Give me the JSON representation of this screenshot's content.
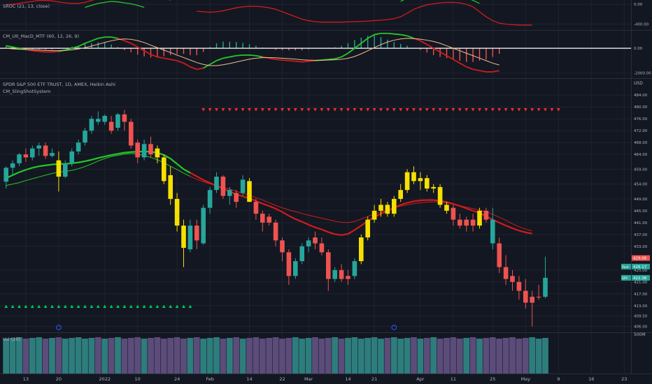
{
  "colors": {
    "background": "#131722",
    "grid": "#1f2330",
    "separator": "#2a2e39",
    "axis_text": "#b2b5be",
    "bull": "#26a69a",
    "bear": "#ef5350",
    "yellow": "#f5e000",
    "green_line": "#26c826",
    "red_line": "#d01c1c",
    "orange_line": "#f0c090",
    "white": "#ffffff",
    "vol_teal": "#2e7d7d",
    "vol_purple": "#5b4c7a",
    "tri_down": "#ff2d2d",
    "tri_up": "#00c853",
    "price_badge_red": "#ef5350",
    "price_badge_teal": "#26a69a"
  },
  "panes": {
    "sroc": {
      "title": "SROC (21, 13, close)",
      "ticks": [
        "0.00",
        "-400.00"
      ],
      "tick_values": [
        0,
        -400
      ],
      "range": [
        -520,
        60
      ]
    },
    "macd": {
      "title": "CM_Ult_MacD_MTF (60, 12, 26, 9)",
      "ticks": [
        "0.00",
        "-2000.00"
      ],
      "tick_values": [
        0,
        -2000
      ],
      "range": [
        -2300,
        1300
      ]
    },
    "price": {
      "title": "SPDR S&P 500 ETF TRUST, 1D, AMEX, Heikin Ashi",
      "subtitle": "CM_SlingShotSystem",
      "currency": "USD",
      "ticks": [
        "484.00",
        "480.00",
        "476.00",
        "472.00",
        "468.00",
        "464.00",
        "459.00",
        "454.00",
        "449.00",
        "445.00",
        "441.00",
        "437.00",
        "433.00",
        "425.00",
        "421.00",
        "417.00",
        "413.00",
        "409.50",
        "406.00"
      ],
      "tick_values": [
        484,
        480,
        476,
        472,
        468,
        464,
        459,
        454,
        449,
        445,
        441,
        437,
        433,
        425,
        421,
        417,
        413,
        409.5,
        406
      ],
      "range": [
        404,
        489
      ],
      "badges": [
        {
          "label": "",
          "value": "429.06",
          "price": 429.06,
          "color": "#ef5350"
        },
        {
          "label": "Post",
          "value": "426.17",
          "price": 426.17,
          "color": "#26a69a"
        },
        {
          "label": "SPY",
          "value": "422.38",
          "price": 422.38,
          "color": "#26a69a"
        }
      ]
    },
    "volume": {
      "title": "Vol (20)",
      "ticks": [
        "500M"
      ]
    }
  },
  "x_axis": {
    "labels": [
      "13",
      "20",
      "2022",
      "10",
      "24",
      "Feb",
      "14",
      "22",
      "Mar",
      "14",
      "21",
      "Apr",
      "11",
      "25",
      "May",
      "9",
      "16",
      "23"
    ],
    "label_bars": [
      3,
      8,
      15,
      20,
      26,
      31,
      37,
      42,
      46,
      52,
      56,
      63,
      68,
      74,
      79,
      84,
      89,
      94
    ]
  },
  "chart_data": {
    "type": "candlestick",
    "candle_style": "Heikin Ashi",
    "ohlc_color": [
      [
        454.8,
        460.0,
        452.5,
        459.5,
        "g"
      ],
      [
        459.5,
        462.0,
        457.0,
        461.0,
        "g"
      ],
      [
        461.0,
        464.5,
        460.0,
        464.0,
        "g"
      ],
      [
        464.0,
        466.0,
        461.5,
        463.0,
        "r"
      ],
      [
        463.0,
        467.0,
        462.0,
        466.0,
        "g"
      ],
      [
        466.0,
        468.0,
        463.5,
        467.0,
        "g"
      ],
      [
        467.0,
        468.0,
        462.5,
        463.5,
        "r"
      ],
      [
        463.5,
        466.0,
        463.0,
        464.5,
        "g"
      ],
      [
        462.0,
        465.0,
        451.5,
        456.5,
        "y"
      ],
      [
        456.5,
        462.0,
        456.0,
        461.0,
        "g"
      ],
      [
        461.0,
        466.0,
        460.0,
        465.0,
        "g"
      ],
      [
        465.0,
        469.0,
        464.0,
        468.0,
        "g"
      ],
      [
        468.0,
        473.0,
        467.0,
        472.0,
        "g"
      ],
      [
        472.0,
        477.0,
        471.0,
        476.0,
        "g"
      ],
      [
        476.0,
        478.5,
        474.0,
        475.0,
        "g"
      ],
      [
        475.0,
        477.5,
        474.0,
        477.0,
        "g"
      ],
      [
        475.0,
        477.0,
        471.0,
        472.0,
        "r"
      ],
      [
        473.0,
        478.0,
        472.0,
        477.5,
        "g"
      ],
      [
        477.5,
        479.0,
        472.0,
        475.0,
        "r"
      ],
      [
        475.0,
        476.0,
        466.0,
        467.0,
        "r"
      ],
      [
        468.0,
        469.0,
        461.0,
        463.0,
        "r"
      ],
      [
        463.0,
        469.0,
        462.0,
        467.5,
        "g"
      ],
      [
        467.5,
        470.0,
        463.0,
        464.0,
        "r"
      ],
      [
        466.0,
        467.0,
        461.0,
        463.0,
        "y"
      ],
      [
        463.0,
        464.0,
        454.0,
        455.0,
        "y"
      ],
      [
        457.0,
        460.0,
        447.0,
        449.0,
        "y"
      ],
      [
        449.0,
        451.0,
        438.0,
        440.0,
        "y"
      ],
      [
        440.0,
        442.0,
        426.0,
        432.5,
        "y"
      ],
      [
        432.0,
        442.0,
        431.0,
        440.0,
        "g"
      ],
      [
        440.0,
        442.0,
        432.0,
        435.0,
        "r"
      ],
      [
        434.0,
        447.0,
        433.5,
        446.0,
        "g"
      ],
      [
        446.0,
        453.0,
        444.0,
        452.0,
        "g"
      ],
      [
        452.0,
        458.0,
        451.0,
        456.5,
        "g"
      ],
      [
        456.5,
        457.0,
        449.0,
        450.0,
        "r"
      ],
      [
        450.0,
        453.0,
        447.0,
        452.0,
        "g"
      ],
      [
        451.0,
        452.0,
        446.0,
        448.0,
        "r"
      ],
      [
        451.0,
        457.0,
        450.0,
        455.5,
        "g"
      ],
      [
        455.0,
        456.0,
        448.0,
        448.0,
        "y"
      ],
      [
        448.0,
        449.0,
        442.0,
        444.0,
        "r"
      ],
      [
        444.0,
        445.0,
        438.0,
        441.0,
        "r"
      ],
      [
        443.0,
        444.0,
        440.0,
        441.0,
        "r"
      ],
      [
        441.0,
        442.0,
        433.0,
        435.0,
        "r"
      ],
      [
        435.0,
        436.0,
        428.0,
        431.0,
        "r"
      ],
      [
        431.0,
        432.0,
        420.0,
        423.0,
        "r"
      ],
      [
        423.0,
        429.0,
        422.0,
        428.0,
        "g"
      ],
      [
        428.0,
        434.0,
        427.0,
        433.0,
        "g"
      ],
      [
        433.0,
        436.0,
        431.0,
        435.0,
        "g"
      ],
      [
        436.0,
        438.0,
        432.0,
        434.0,
        "r"
      ],
      [
        434.0,
        436.0,
        430.0,
        431.0,
        "r"
      ],
      [
        431.0,
        432.0,
        418.0,
        422.0,
        "r"
      ],
      [
        422.0,
        426.0,
        421.0,
        425.0,
        "g"
      ],
      [
        425.0,
        427.0,
        421.0,
        422.0,
        "r"
      ],
      [
        422.0,
        425.0,
        420.0,
        423.0,
        "r"
      ],
      [
        423.0,
        429.0,
        422.0,
        428.0,
        "g"
      ],
      [
        428.0,
        437.0,
        427.0,
        436.0,
        "y"
      ],
      [
        436.0,
        443.0,
        435.0,
        442.0,
        "y"
      ],
      [
        442.0,
        447.0,
        441.0,
        445.0,
        "y"
      ],
      [
        445.0,
        449.0,
        443.0,
        447.0,
        "y"
      ],
      [
        447.0,
        448.0,
        443.0,
        444.0,
        "y"
      ],
      [
        444.0,
        450.0,
        443.0,
        449.0,
        "y"
      ],
      [
        449.0,
        454.0,
        448.0,
        452.0,
        "y"
      ],
      [
        452.0,
        459.0,
        451.0,
        458.0,
        "y"
      ],
      [
        458.0,
        460.0,
        454.0,
        455.0,
        "y"
      ],
      [
        455.0,
        458.0,
        452.0,
        456.0,
        "y"
      ],
      [
        456.0,
        457.0,
        451.5,
        452.5,
        "y"
      ],
      [
        452.5,
        454.0,
        451.0,
        453.0,
        "y"
      ],
      [
        453.0,
        454.0,
        446.0,
        447.0,
        "y"
      ],
      [
        447.0,
        448.0,
        444.0,
        445.0,
        "y"
      ],
      [
        446.0,
        447.0,
        440.0,
        442.0,
        "r"
      ],
      [
        442.0,
        444.0,
        439.0,
        440.0,
        "r"
      ],
      [
        440.0,
        443.0,
        438.0,
        442.0,
        "r"
      ],
      [
        442.0,
        444.0,
        438.0,
        440.0,
        "r"
      ],
      [
        440.0,
        446.0,
        439.0,
        445.0,
        "y"
      ],
      [
        445.0,
        446.0,
        441.0,
        442.0,
        "r"
      ],
      [
        442.0,
        446.0,
        432.0,
        434.0,
        "g"
      ],
      [
        434.0,
        436.0,
        424.0,
        426.0,
        "r"
      ],
      [
        426.0,
        430.0,
        420.0,
        422.0,
        "r"
      ],
      [
        423.0,
        425.0,
        418.0,
        421.0,
        "r"
      ],
      [
        421.0,
        423.0,
        415.0,
        418.0,
        "r"
      ],
      [
        418.0,
        422.0,
        412.0,
        414.0,
        "r"
      ],
      [
        414.0,
        418.0,
        406.0,
        416.0,
        "r"
      ],
      [
        416.0,
        420.0,
        415.0,
        416.0,
        "r"
      ],
      [
        416.0,
        429.5,
        415.5,
        422.4,
        "g"
      ]
    ],
    "ema_green": [
      456.0,
      457.0,
      458.0,
      458.8,
      459.5,
      460.0,
      460.3,
      460.6,
      460.8,
      460.8,
      461.0,
      461.3,
      461.7,
      462.2,
      462.8,
      463.3,
      463.8,
      464.2,
      464.6,
      464.8,
      464.9,
      465.0,
      464.9,
      464.6,
      463.8,
      462.6,
      460.8,
      459.0,
      457.8,
      456.6,
      455.4,
      454.4,
      453.4,
      452.4,
      451.5,
      450.6,
      449.8,
      449.2,
      448.3,
      447.4,
      446.6,
      445.7,
      444.6,
      443.3,
      442.2,
      441.3,
      440.3,
      439.4,
      438.7,
      437.8,
      437.1,
      436.8,
      437.2,
      438.5,
      440.0,
      441.5,
      442.9,
      444.0,
      445.0,
      446.0,
      447.0,
      447.7,
      448.2,
      448.5,
      448.6,
      448.6,
      448.3,
      448.0,
      447.3,
      446.6,
      445.8,
      445.0,
      444.2,
      443.2,
      442.0,
      441.0,
      440.0,
      439.1,
      438.3,
      437.7,
      437.3
    ],
    "ema_green2": [
      453.5,
      454.0,
      454.5,
      455.2,
      455.8,
      456.4,
      457.0,
      457.6,
      458.0,
      458.3,
      458.6,
      459.2,
      459.9,
      460.8,
      461.8,
      462.6,
      463.3,
      463.7,
      464.1,
      464.3,
      464.1,
      463.6,
      463.0,
      462.2,
      461.2,
      460.0,
      458.9,
      457.7,
      456.6,
      455.6,
      454.8,
      454.1,
      453.5,
      452.9,
      452.3,
      451.6,
      450.9,
      450.2,
      449.4,
      448.6,
      447.7,
      446.8,
      446.0,
      445.3,
      444.7,
      444.1,
      443.5,
      443.0,
      442.5,
      442.0,
      441.5,
      441.1,
      441.0,
      441.4,
      442.2,
      443.1,
      443.9,
      444.6,
      445.3,
      446.0,
      446.6,
      447.0,
      447.4,
      447.7,
      447.9,
      448.0,
      447.9,
      447.6,
      447.2,
      446.7,
      446.2,
      445.7,
      445.2,
      444.6,
      443.8,
      442.8,
      441.8,
      440.6,
      439.6,
      438.8,
      438.2
    ],
    "macd_main": [
      200,
      100,
      0,
      -100,
      -200,
      -250,
      -300,
      -300,
      -250,
      -150,
      0,
      150,
      400,
      600,
      800,
      900,
      900,
      800,
      600,
      400,
      100,
      -200,
      -500,
      -700,
      -800,
      -900,
      -1000,
      -1200,
      -1500,
      -1700,
      -1600,
      -1300,
      -1000,
      -800,
      -700,
      -600,
      -550,
      -550,
      -600,
      -700,
      -800,
      -900,
      -950,
      -1000,
      -1050,
      -1100,
      -1050,
      -1000,
      -950,
      -900,
      -850,
      -700,
      -400,
      0,
      400,
      800,
      1100,
      1200,
      1200,
      1150,
      1100,
      1000,
      800,
      600,
      300,
      0,
      -300,
      -600,
      -900,
      -1200,
      -1500,
      -1700,
      -1800,
      -1900,
      -1900,
      -1800
    ],
    "macd_signal": [
      0,
      -50,
      -80,
      -100,
      -120,
      -150,
      -180,
      -200,
      -200,
      -180,
      -130,
      -60,
      50,
      180,
      320,
      470,
      600,
      700,
      750,
      720,
      620,
      460,
      250,
      50,
      -150,
      -350,
      -550,
      -750,
      -950,
      -1150,
      -1300,
      -1400,
      -1400,
      -1330,
      -1230,
      -1110,
      -990,
      -880,
      -800,
      -760,
      -750,
      -770,
      -800,
      -840,
      -880,
      -930,
      -960,
      -970,
      -970,
      -950,
      -930,
      -890,
      -810,
      -660,
      -450,
      -200,
      50,
      300,
      500,
      650,
      750,
      800,
      780,
      730,
      650,
      550,
      400,
      200,
      0,
      -200,
      -400,
      -600,
      -800,
      -1000,
      -1200,
      -1350,
      -1450,
      -1500
    ],
    "sroc_red": [
      -140,
      -150,
      -160,
      -150,
      -130,
      -100,
      -70,
      -50,
      -40,
      -40,
      -50,
      -70,
      -100,
      -150,
      -200,
      -250,
      -300,
      -330,
      -350,
      -360,
      -360,
      -360,
      -360,
      -355,
      -350,
      -345,
      -340,
      -330,
      -320,
      -310,
      -290,
      -250,
      -180,
      -100,
      -50,
      -10,
      10,
      30,
      40,
      40,
      30,
      0,
      -50,
      -150,
      -250,
      -330,
      -380,
      -400,
      -410,
      -420,
      -420,
      -420
    ],
    "sroc_green": [
      0,
      0,
      20,
      40,
      60,
      80,
      80,
      70,
      50,
      30,
      20,
      20,
      40,
      80,
      120,
      150,
      180,
      200,
      220,
      230,
      240,
      240,
      230,
      200,
      150,
      80
    ]
  }
}
